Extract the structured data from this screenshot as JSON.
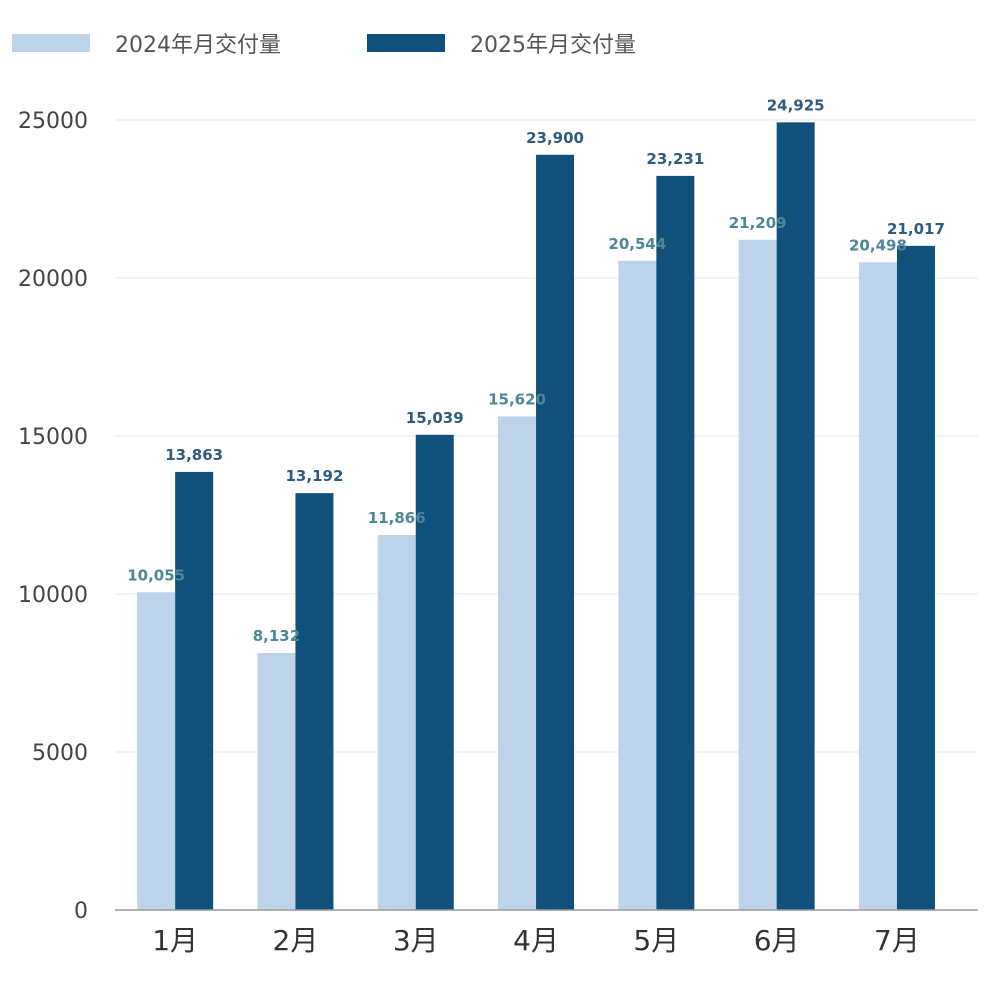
{
  "chart_data": {
    "type": "bar",
    "categories": [
      "1月",
      "2月",
      "3月",
      "4月",
      "5月",
      "6月",
      "7月"
    ],
    "series": [
      {
        "name": "2024年月交付量",
        "values": [
          10055,
          8132,
          11866,
          15620,
          20544,
          21209,
          20498
        ],
        "labels": [
          "10,055",
          "8,132",
          "11,866",
          "15,620",
          "20,544",
          "21,209",
          "20,498"
        ],
        "color": "#bdd3ea",
        "label_color": "#4d8696"
      },
      {
        "name": "2025年月交付量",
        "values": [
          13863,
          13192,
          15039,
          23900,
          23231,
          24925,
          21017
        ],
        "labels": [
          "13,863",
          "13,192",
          "15,039",
          "23,900",
          "23,231",
          "24,925",
          "21,017"
        ],
        "color": "#10507a",
        "label_color": "#2f5c7e"
      }
    ],
    "yticks": [
      0,
      5000,
      10000,
      15000,
      20000,
      25000
    ],
    "ylim": [
      0,
      25000
    ],
    "grid": true,
    "legend_position": "top-left",
    "gridline_color": "#e3e8ec",
    "axis_color": "#999999"
  }
}
